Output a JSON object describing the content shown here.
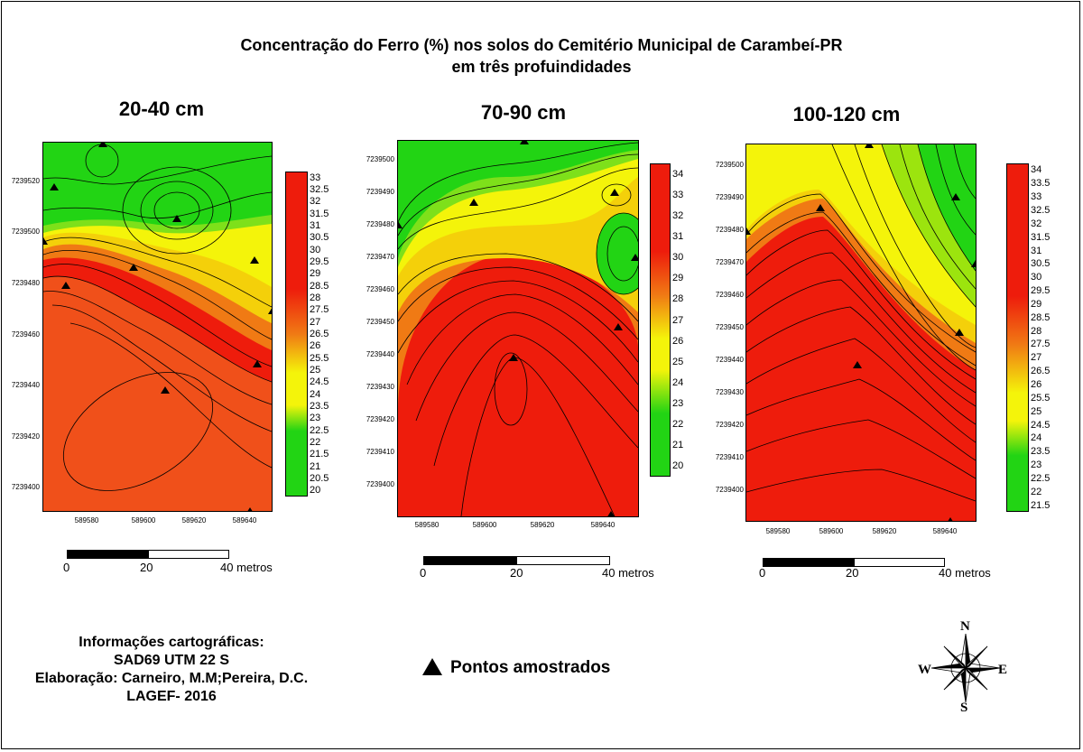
{
  "title": {
    "line1": "Concentração do Ferro (%) nos solos do Cemitério Municipal de Carambeí-PR",
    "line2": "em três profuindidades"
  },
  "colors": {
    "red": "#ee1c0c",
    "orange": "#f07a14",
    "yellow": "#f4f40a",
    "green": "#22d414",
    "line": "#000000"
  },
  "panels": [
    {
      "title": "20-40 cm",
      "y_ticks": [
        "7239520",
        "7239500",
        "7239480",
        "7239460",
        "7239440",
        "7239420",
        "7239400"
      ],
      "x_ticks": [
        "589580",
        "589600",
        "589620",
        "589640"
      ],
      "legend": [
        "33",
        "32.5",
        "32",
        "31.5",
        "31",
        "30.5",
        "30",
        "29.5",
        "29",
        "28.5",
        "28",
        "27.5",
        "27",
        "26.5",
        "26",
        "25.5",
        "25",
        "24.5",
        "24",
        "23.5",
        "23",
        "22.5",
        "22",
        "21.5",
        "21",
        "20.5",
        "20"
      ],
      "scale": [
        "0",
        "20",
        "40 metros"
      ]
    },
    {
      "title": "70-90 cm",
      "y_ticks": [
        "7239500",
        "7239490",
        "7239480",
        "7239470",
        "7239460",
        "7239450",
        "7239440",
        "7239430",
        "7239420",
        "7239410",
        "7239400"
      ],
      "x_ticks": [
        "589580",
        "589600",
        "589620",
        "589640"
      ],
      "legend": [
        "34",
        "33",
        "32",
        "31",
        "30",
        "29",
        "28",
        "27",
        "26",
        "25",
        "24",
        "23",
        "22",
        "21",
        "20"
      ],
      "scale": [
        "0",
        "20",
        "40 metros"
      ]
    },
    {
      "title": "100-120 cm",
      "y_ticks": [
        "7239500",
        "7239490",
        "7239480",
        "7239470",
        "7239460",
        "7239450",
        "7239440",
        "7239430",
        "7239420",
        "7239410",
        "7239400"
      ],
      "x_ticks": [
        "589580",
        "589600",
        "589620",
        "589640"
      ],
      "legend": [
        "34",
        "33.5",
        "33",
        "32.5",
        "32",
        "31.5",
        "31",
        "30.5",
        "30",
        "29.5",
        "29",
        "28.5",
        "28",
        "27.5",
        "27",
        "26.5",
        "26",
        "25.5",
        "25",
        "24.5",
        "24",
        "23.5",
        "23",
        "22.5",
        "22",
        "21.5"
      ],
      "scale": [
        "0",
        "20",
        "40 metros"
      ]
    }
  ],
  "info": {
    "line1": "Informações cartográficas:",
    "line2": "SAD69  UTM 22 S",
    "line3": "Elaboração: Carneiro, M.M;Pereira, D.C.",
    "line4": "LAGEF- 2016"
  },
  "sample_legend": "Pontos amostrados",
  "compass": {
    "n": "N",
    "s": "S",
    "e": "E",
    "w": "W"
  }
}
